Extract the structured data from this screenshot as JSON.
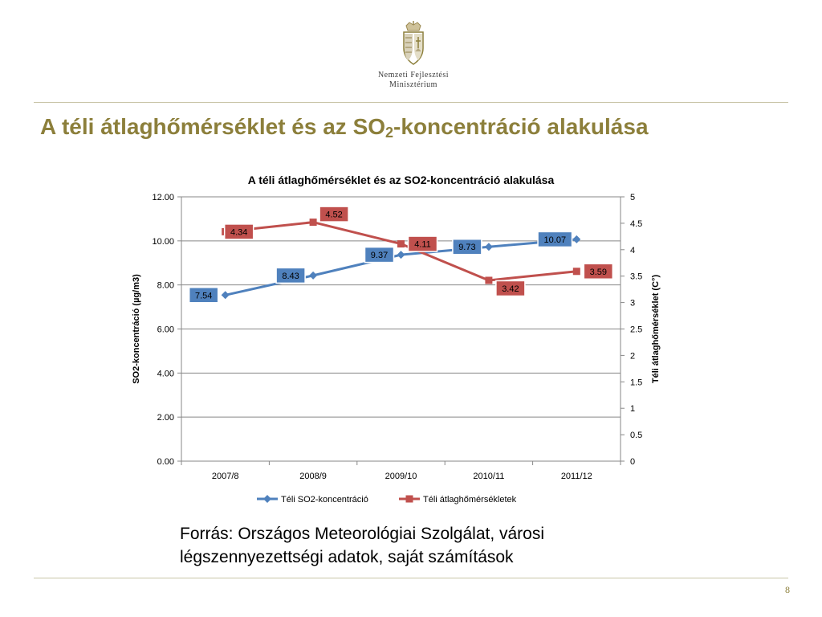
{
  "slide": {
    "title_main": "A téli átlaghőmérséklet és az SO",
    "title_sub": "2",
    "title_tail": "-koncentráció alakulása",
    "ministry_line1": "Nemzeti Fejlesztési",
    "ministry_line2": "Minisztérium",
    "source_line1": "Forrás: Országos Meteorológiai Szolgálat, városi",
    "source_line2": "légszennyezettségi adatok, saját számítások",
    "page_number": "8"
  },
  "colors": {
    "title": "#8c7f3b",
    "rule": "#c9c5a8",
    "so2_series": "#4f81bd",
    "temp_series": "#c0504d",
    "gridline": "#878787"
  },
  "icons": {
    "logo": "hungarian-coat-of-arms-icon"
  },
  "chart_data": {
    "type": "line",
    "title": "A téli átlaghőmérséklet és az SO2-koncentráció alakulása",
    "categories": [
      "2007/8",
      "2008/9",
      "2009/10",
      "2010/11",
      "2011/12"
    ],
    "series": [
      {
        "name": "Téli SO2-koncentráció",
        "axis": "left",
        "marker": "diamond",
        "color": "#4f81bd",
        "values": [
          7.54,
          8.43,
          9.37,
          9.73,
          10.07
        ],
        "labels": [
          "7.54",
          "8.43",
          "9.37",
          "9.73",
          "10.07"
        ]
      },
      {
        "name": "Téli átlaghőmérsékletek",
        "axis": "right",
        "marker": "square",
        "color": "#c0504d",
        "values": [
          4.34,
          4.52,
          4.11,
          3.42,
          3.59
        ],
        "labels": [
          "4.34",
          "4.52",
          "4.11",
          "3.42",
          "3.59"
        ]
      }
    ],
    "ylabel": "SO2-koncentráció (µg/m3)",
    "y2label": "Téli átlaghőmérséklet (C°)",
    "xlabel": "",
    "ylim": [
      0,
      12
    ],
    "y2lim": [
      0,
      5
    ],
    "yticks": [
      "0.00",
      "2.00",
      "4.00",
      "6.00",
      "8.00",
      "10.00",
      "12.00"
    ],
    "y2ticks": [
      "0",
      "0.5",
      "1",
      "1.5",
      "2",
      "2.5",
      "3",
      "3.5",
      "4",
      "4.5",
      "5"
    ],
    "grid": true,
    "legend": "bottom"
  }
}
